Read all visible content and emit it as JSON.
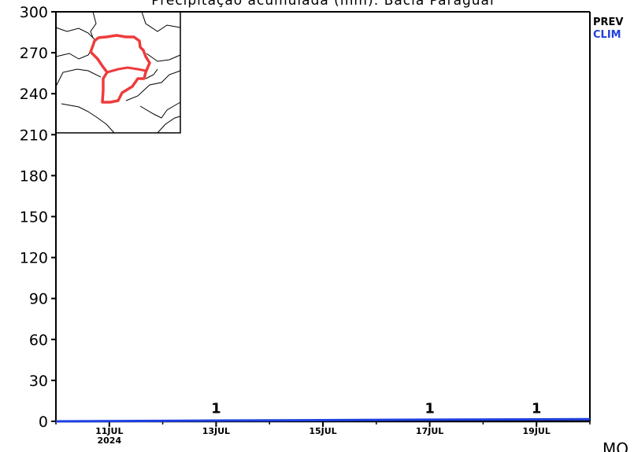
{
  "chart_data": {
    "type": "line",
    "title": "Precipitação acumulada (mm): Bacia Paraguai",
    "xlabel": "",
    "ylabel": "",
    "ylim": [
      0,
      300
    ],
    "yticks": [
      "0",
      "30",
      "60",
      "90",
      "120",
      "150",
      "180",
      "210",
      "240",
      "270",
      "300"
    ],
    "x_range": [
      "2024-07-10",
      "2024-07-20"
    ],
    "xticks": [
      {
        "date": "2024-07-11",
        "label": "11JUL",
        "sublabel": "2024"
      },
      {
        "date": "2024-07-13",
        "label": "13JUL",
        "sublabel": ""
      },
      {
        "date": "2024-07-15",
        "label": "15JUL",
        "sublabel": ""
      },
      {
        "date": "2024-07-17",
        "label": "17JUL",
        "sublabel": ""
      },
      {
        "date": "2024-07-19",
        "label": "19JUL",
        "sublabel": ""
      }
    ],
    "series": [
      {
        "name": "PREV",
        "color": "#000000",
        "x": [
          "2024-07-10",
          "2024-07-12",
          "2024-07-13",
          "2024-07-17",
          "2024-07-19",
          "2024-07-20"
        ],
        "values": [
          0,
          0,
          1,
          1,
          1,
          1
        ]
      },
      {
        "name": "CLIM",
        "color": "#1f3fe0",
        "x": [
          "2024-07-10",
          "2024-07-13",
          "2024-07-17",
          "2024-07-20"
        ],
        "values": [
          0,
          0.6,
          1.2,
          1.6
        ]
      }
    ],
    "data_labels": [
      {
        "date": "2024-07-13",
        "value": 1,
        "text": "1"
      },
      {
        "date": "2024-07-17",
        "value": 1,
        "text": "1"
      },
      {
        "date": "2024-07-19",
        "value": 1,
        "text": "1"
      }
    ],
    "legend_position": "right, outside top",
    "grid": false,
    "inset": "basin outline map",
    "basin_color": "#ee3b3b"
  },
  "footer_credit": "MO"
}
